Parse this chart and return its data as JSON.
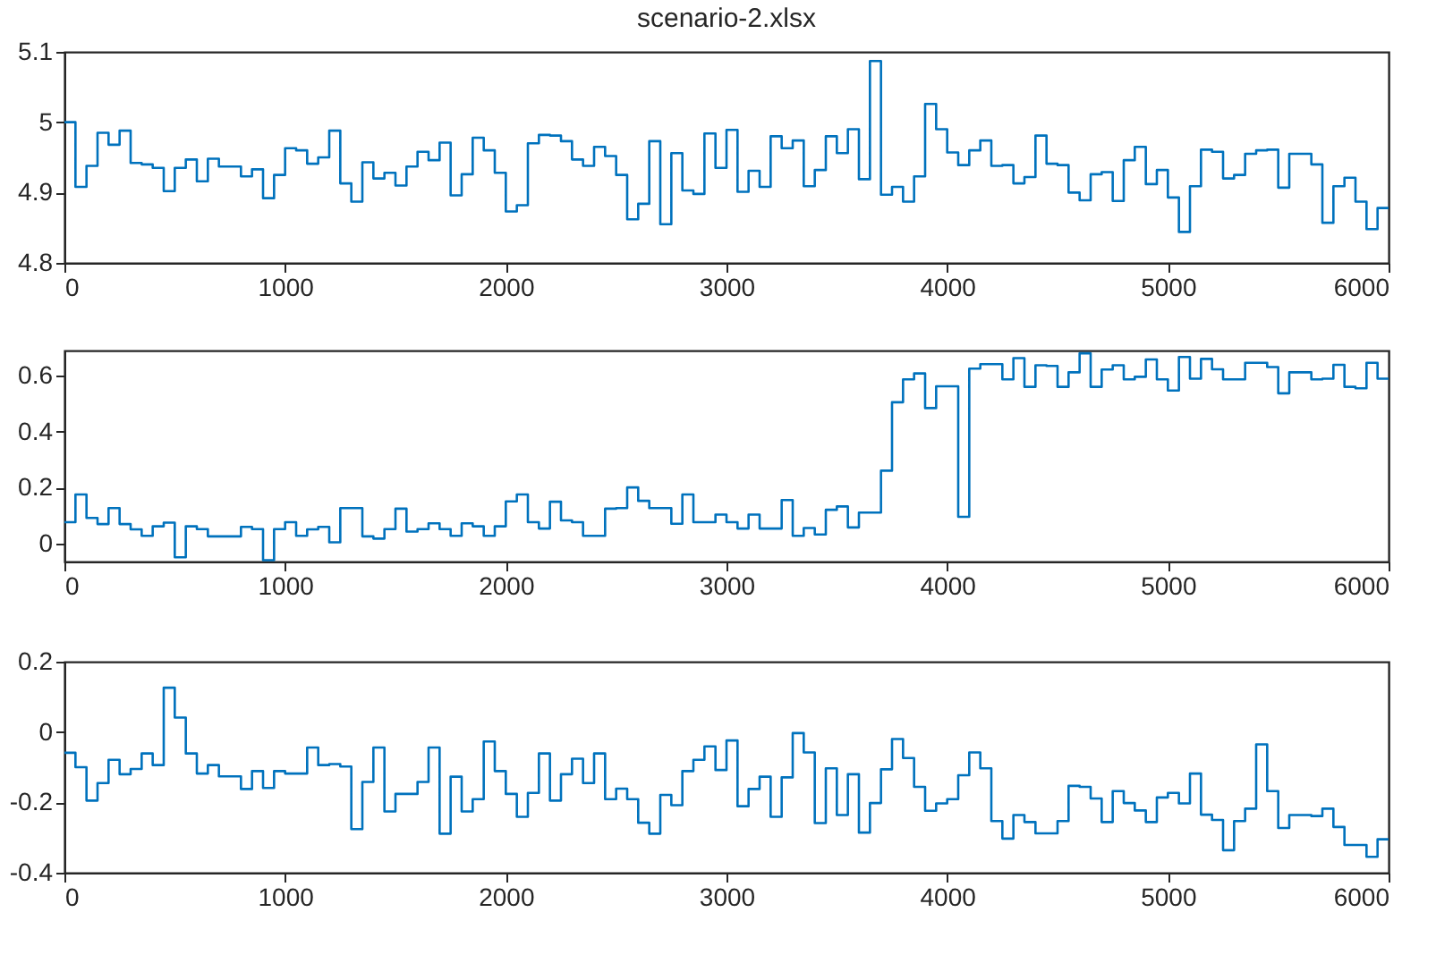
{
  "chart_data": [
    {
      "type": "step",
      "title": "scenario-2.xlsx",
      "xlim": [
        0,
        6000
      ],
      "xticks": [
        0,
        1000,
        2000,
        3000,
        4000,
        5000,
        6000
      ],
      "ylim": [
        4.8,
        5.1
      ],
      "yticks": [
        4.8,
        4.9,
        5,
        5.1
      ],
      "grid": false,
      "series": [
        {
          "color": "#0072bd",
          "x": [
            0,
            50,
            100,
            150,
            200,
            250,
            300,
            350,
            400,
            450,
            500,
            550,
            600,
            650,
            700,
            750,
            800,
            850,
            900,
            950,
            1000,
            1050,
            1100,
            1150,
            1200,
            1250,
            1300,
            1350,
            1400,
            1450,
            1500,
            1550,
            1600,
            1650,
            1700,
            1750,
            1800,
            1850,
            1900,
            1950,
            2000,
            2050,
            2100,
            2150,
            2200,
            2250,
            2300,
            2350,
            2400,
            2450,
            2500,
            2550,
            2600,
            2650,
            2700,
            2750,
            2800,
            2850,
            2900,
            2950,
            3000,
            3050,
            3100,
            3150,
            3200,
            3250,
            3300,
            3350,
            3400,
            3450,
            3500,
            3550,
            3600,
            3650,
            3700,
            3750,
            3800,
            3850,
            3900,
            3950,
            4000,
            4050,
            4100,
            4150,
            4200,
            4250,
            4300,
            4350,
            4400,
            4450,
            4500,
            4550,
            4600,
            4650,
            4700,
            4750,
            4800,
            4850,
            4900,
            4950,
            5000,
            5050,
            5100,
            5150,
            5200,
            5250,
            5300,
            5350,
            5400,
            5450,
            5500,
            5550,
            5600,
            5650,
            5700,
            5750,
            5800,
            5850,
            5900,
            5950,
            6000
          ],
          "values": [
            5.0,
            4.908,
            4.938,
            4.985,
            4.968,
            4.988,
            4.942,
            4.94,
            4.935,
            4.902,
            4.935,
            4.947,
            4.916,
            4.948,
            4.937,
            4.937,
            4.923,
            4.933,
            4.892,
            4.925,
            4.963,
            4.96,
            4.941,
            4.95,
            4.988,
            4.913,
            4.887,
            4.943,
            4.92,
            4.928,
            4.91,
            4.937,
            4.958,
            4.946,
            4.971,
            4.896,
            4.926,
            4.978,
            4.96,
            4.928,
            4.873,
            4.882,
            4.97,
            4.982,
            4.981,
            4.973,
            4.947,
            4.938,
            4.965,
            4.952,
            4.925,
            4.862,
            4.884,
            4.973,
            4.855,
            4.956,
            4.903,
            4.898,
            4.984,
            4.935,
            4.989,
            4.901,
            4.931,
            4.908,
            4.98,
            4.963,
            4.974,
            4.909,
            4.932,
            4.98,
            4.956,
            4.99,
            4.919,
            5.087,
            4.897,
            4.908,
            4.887,
            4.923,
            5.026,
            4.99,
            4.957,
            4.939,
            4.96,
            4.974,
            4.938,
            4.939,
            4.913,
            4.922,
            4.981,
            4.941,
            4.939,
            4.9,
            4.889,
            4.926,
            4.929,
            4.888,
            4.946,
            4.965,
            4.912,
            4.932,
            4.893,
            4.844,
            4.909,
            4.961,
            4.958,
            4.92,
            4.925,
            4.955,
            4.96,
            4.961,
            4.907,
            4.955,
            4.955,
            4.94,
            4.857,
            4.909,
            4.921,
            4.887,
            4.848,
            4.878,
            4.878
          ]
        }
      ]
    },
    {
      "type": "step",
      "xlim": [
        0,
        6000
      ],
      "xticks": [
        0,
        1000,
        2000,
        3000,
        4000,
        5000,
        6000
      ],
      "ylim": [
        -0.065,
        0.69
      ],
      "yticks": [
        0,
        0.2,
        0.4,
        0.6
      ],
      "grid": false,
      "series": [
        {
          "color": "#0072bd",
          "x": [
            0,
            50,
            100,
            150,
            200,
            250,
            300,
            350,
            400,
            450,
            500,
            550,
            600,
            650,
            700,
            750,
            800,
            850,
            900,
            950,
            1000,
            1050,
            1100,
            1150,
            1200,
            1250,
            1300,
            1350,
            1400,
            1450,
            1500,
            1550,
            1600,
            1650,
            1700,
            1750,
            1800,
            1850,
            1900,
            1950,
            2000,
            2050,
            2100,
            2150,
            2200,
            2250,
            2300,
            2350,
            2400,
            2450,
            2500,
            2550,
            2600,
            2650,
            2700,
            2750,
            2800,
            2850,
            2900,
            2950,
            3000,
            3050,
            3100,
            3150,
            3200,
            3250,
            3300,
            3350,
            3400,
            3450,
            3500,
            3550,
            3600,
            3650,
            3700,
            3750,
            3800,
            3850,
            3900,
            3950,
            4000,
            4050,
            4100,
            4150,
            4200,
            4250,
            4300,
            4350,
            4400,
            4450,
            4500,
            4550,
            4600,
            4650,
            4700,
            4750,
            4800,
            4850,
            4900,
            4950,
            5000,
            5050,
            5100,
            5150,
            5200,
            5250,
            5300,
            5350,
            5400,
            5450,
            5500,
            5550,
            5600,
            5650,
            5700,
            5750,
            5800,
            5850,
            5900,
            5950,
            6000
          ],
          "values": [
            0.076,
            0.175,
            0.091,
            0.069,
            0.126,
            0.069,
            0.05,
            0.027,
            0.061,
            0.074,
            -0.05,
            0.061,
            0.051,
            0.025,
            0.025,
            0.025,
            0.059,
            0.051,
            -0.06,
            0.051,
            0.076,
            0.027,
            0.05,
            0.059,
            0.004,
            0.126,
            0.126,
            0.025,
            0.017,
            0.051,
            0.124,
            0.042,
            0.051,
            0.072,
            0.051,
            0.027,
            0.072,
            0.061,
            0.027,
            0.061,
            0.15,
            0.175,
            0.076,
            0.053,
            0.149,
            0.082,
            0.076,
            0.027,
            0.027,
            0.124,
            0.126,
            0.2,
            0.152,
            0.126,
            0.126,
            0.07,
            0.175,
            0.076,
            0.076,
            0.103,
            0.076,
            0.053,
            0.103,
            0.053,
            0.053,
            0.155,
            0.027,
            0.055,
            0.032,
            0.12,
            0.132,
            0.057,
            0.11,
            0.11,
            0.26,
            0.505,
            0.587,
            0.608,
            0.484,
            0.562,
            0.562,
            0.095,
            0.625,
            0.641,
            0.641,
            0.587,
            0.663,
            0.56,
            0.637,
            0.635,
            0.56,
            0.612,
            0.68,
            0.56,
            0.622,
            0.637,
            0.587,
            0.596,
            0.658,
            0.587,
            0.547,
            0.667,
            0.589,
            0.66,
            0.623,
            0.587,
            0.587,
            0.646,
            0.646,
            0.631,
            0.537,
            0.612,
            0.612,
            0.587,
            0.589,
            0.639,
            0.56,
            0.555,
            0.646,
            0.589,
            0.589
          ]
        }
      ]
    },
    {
      "type": "step",
      "xlim": [
        0,
        6000
      ],
      "xticks": [
        0,
        1000,
        2000,
        3000,
        4000,
        5000,
        6000
      ],
      "ylim": [
        -0.4,
        0.2
      ],
      "yticks": [
        -0.4,
        -0.2,
        0,
        0.2
      ],
      "grid": false,
      "series": [
        {
          "color": "#0072bd",
          "x": [
            0,
            50,
            100,
            150,
            200,
            250,
            300,
            350,
            400,
            450,
            500,
            550,
            600,
            650,
            700,
            750,
            800,
            850,
            900,
            950,
            1000,
            1050,
            1100,
            1150,
            1200,
            1250,
            1300,
            1350,
            1400,
            1450,
            1500,
            1550,
            1600,
            1650,
            1700,
            1750,
            1800,
            1850,
            1900,
            1950,
            2000,
            2050,
            2100,
            2150,
            2200,
            2250,
            2300,
            2350,
            2400,
            2450,
            2500,
            2550,
            2600,
            2650,
            2700,
            2750,
            2800,
            2850,
            2900,
            2950,
            3000,
            3050,
            3100,
            3150,
            3200,
            3250,
            3300,
            3350,
            3400,
            3450,
            3500,
            3550,
            3600,
            3650,
            3700,
            3750,
            3800,
            3850,
            3900,
            3950,
            4000,
            4050,
            4100,
            4150,
            4200,
            4250,
            4300,
            4350,
            4400,
            4450,
            4500,
            4550,
            4600,
            4650,
            4700,
            4750,
            4800,
            4850,
            4900,
            4950,
            5000,
            5050,
            5100,
            5150,
            5200,
            5250,
            5300,
            5350,
            5400,
            5450,
            5500,
            5550,
            5600,
            5650,
            5700,
            5750,
            5800,
            5850,
            5900,
            5950,
            6000
          ],
          "values": [
            -0.059,
            -0.1,
            -0.195,
            -0.145,
            -0.079,
            -0.12,
            -0.105,
            -0.061,
            -0.094,
            0.126,
            0.041,
            -0.061,
            -0.118,
            -0.094,
            -0.126,
            -0.126,
            -0.162,
            -0.111,
            -0.159,
            -0.111,
            -0.118,
            -0.118,
            -0.044,
            -0.094,
            -0.091,
            -0.098,
            -0.276,
            -0.142,
            -0.044,
            -0.226,
            -0.176,
            -0.176,
            -0.142,
            -0.044,
            -0.289,
            -0.127,
            -0.226,
            -0.191,
            -0.027,
            -0.111,
            -0.176,
            -0.241,
            -0.173,
            -0.061,
            -0.195,
            -0.12,
            -0.076,
            -0.145,
            -0.061,
            -0.191,
            -0.161,
            -0.191,
            -0.258,
            -0.289,
            -0.179,
            -0.208,
            -0.111,
            -0.079,
            -0.041,
            -0.108,
            -0.024,
            -0.211,
            -0.162,
            -0.127,
            -0.241,
            -0.129,
            -0.003,
            -0.058,
            -0.259,
            -0.103,
            -0.236,
            -0.12,
            -0.286,
            -0.202,
            -0.106,
            -0.02,
            -0.074,
            -0.156,
            -0.224,
            -0.203,
            -0.191,
            -0.123,
            -0.058,
            -0.103,
            -0.253,
            -0.303,
            -0.236,
            -0.256,
            -0.288,
            -0.288,
            -0.253,
            -0.153,
            -0.156,
            -0.189,
            -0.256,
            -0.168,
            -0.202,
            -0.223,
            -0.256,
            -0.186,
            -0.173,
            -0.203,
            -0.118,
            -0.235,
            -0.25,
            -0.336,
            -0.253,
            -0.218,
            -0.035,
            -0.168,
            -0.273,
            -0.236,
            -0.236,
            -0.239,
            -0.218,
            -0.27,
            -0.321,
            -0.321,
            -0.355,
            -0.305,
            -0.305
          ]
        }
      ]
    }
  ]
}
